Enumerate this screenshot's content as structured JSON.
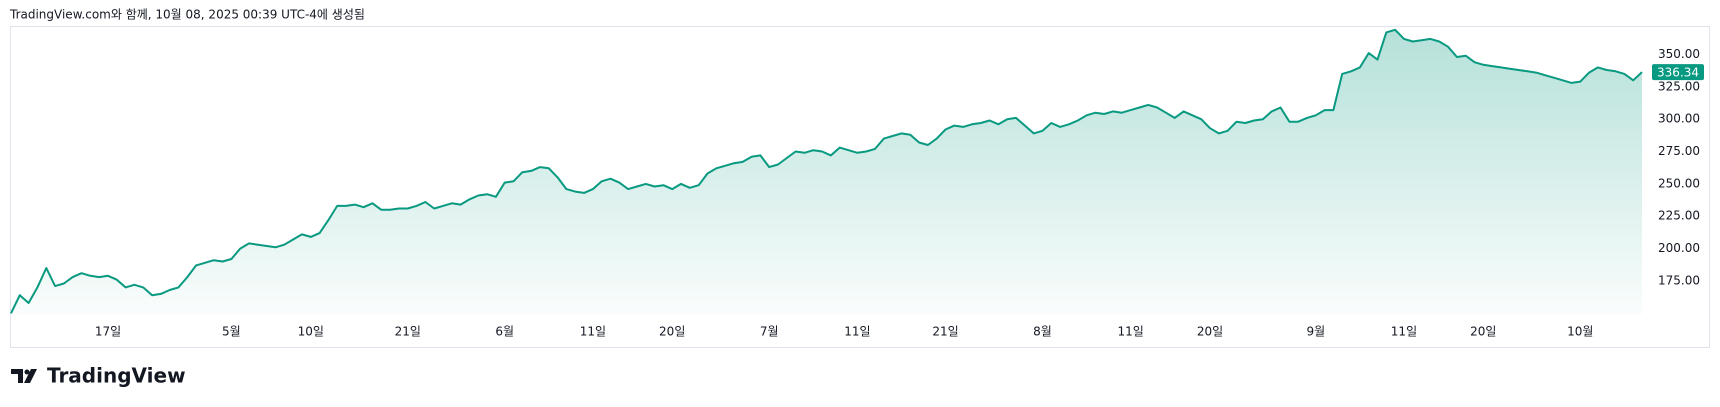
{
  "chart_data": {
    "type": "area",
    "title": "TradingView.com와 함께, 10월 08, 2025 00:39 UTC-4에 생성됨",
    "categories": [
      null,
      null,
      null,
      null,
      null,
      null,
      null,
      null,
      null,
      null,
      null,
      "17일",
      null,
      null,
      null,
      null,
      null,
      null,
      null,
      null,
      null,
      null,
      null,
      null,
      null,
      "5월",
      null,
      null,
      null,
      null,
      null,
      null,
      null,
      null,
      "10일",
      null,
      null,
      null,
      null,
      null,
      null,
      null,
      null,
      null,
      null,
      "21일",
      null,
      null,
      null,
      null,
      null,
      null,
      null,
      null,
      null,
      null,
      "6월",
      null,
      null,
      null,
      null,
      null,
      null,
      null,
      null,
      null,
      "11일",
      null,
      null,
      null,
      null,
      null,
      null,
      null,
      null,
      "20일",
      null,
      null,
      null,
      null,
      null,
      null,
      null,
      null,
      null,
      null,
      "7월",
      null,
      null,
      null,
      null,
      null,
      null,
      null,
      null,
      null,
      "11일",
      null,
      null,
      null,
      null,
      null,
      null,
      null,
      null,
      null,
      "21일",
      null,
      null,
      null,
      null,
      null,
      null,
      null,
      null,
      null,
      null,
      "8월",
      null,
      null,
      null,
      null,
      null,
      null,
      null,
      null,
      null,
      "11일",
      null,
      null,
      null,
      null,
      null,
      null,
      null,
      null,
      "20일",
      null,
      null,
      null,
      null,
      null,
      null,
      null,
      null,
      null,
      null,
      null,
      "9월",
      null,
      null,
      null,
      null,
      null,
      null,
      null,
      null,
      null,
      "11일",
      null,
      null,
      null,
      null,
      null,
      null,
      null,
      null,
      "20일",
      null,
      null,
      null,
      null,
      null,
      null,
      null,
      null,
      null,
      null,
      "10월",
      null,
      null,
      null,
      null,
      null,
      null,
      null
    ],
    "values": [
      150,
      164,
      158,
      170,
      185,
      171,
      173,
      178,
      181,
      179,
      178,
      179,
      176,
      170,
      172,
      170,
      164,
      165,
      168,
      170,
      178,
      187,
      189,
      191,
      190,
      192,
      200,
      204,
      203,
      202,
      201,
      203,
      207,
      211,
      209,
      212,
      222,
      233,
      233,
      234,
      232,
      235,
      230,
      230,
      231,
      231,
      233,
      236,
      231,
      233,
      235,
      234,
      238,
      241,
      242,
      240,
      251,
      252,
      259,
      260,
      263,
      262,
      255,
      246,
      244,
      243,
      246,
      252,
      254,
      251,
      246,
      248,
      250,
      248,
      249,
      246,
      250,
      247,
      249,
      258,
      262,
      264,
      266,
      267,
      271,
      272,
      263,
      265,
      270,
      275,
      274,
      276,
      275,
      272,
      278,
      276,
      274,
      275,
      277,
      285,
      287,
      289,
      288,
      282,
      280,
      285,
      292,
      295,
      294,
      296,
      297,
      299,
      296,
      300,
      301,
      295,
      289,
      291,
      297,
      294,
      296,
      299,
      303,
      305,
      304,
      306,
      305,
      307,
      309,
      311,
      309,
      305,
      301,
      306,
      303,
      300,
      293,
      289,
      291,
      298,
      297,
      299,
      300,
      306,
      309,
      298,
      298,
      301,
      303,
      307,
      307,
      335,
      337,
      340,
      351,
      346,
      367,
      369,
      362,
      360,
      361,
      362,
      360,
      356,
      348,
      349,
      344,
      342,
      341,
      340,
      339,
      338,
      337,
      336,
      334,
      332,
      330,
      328,
      329,
      336,
      340,
      338,
      337,
      335,
      330,
      336.34
    ],
    "color": "#089981",
    "ylim": [
      148.7,
      371.2
    ],
    "yticks": [
      {
        "value": 175,
        "label": "175.00"
      },
      {
        "value": 200,
        "label": "200.00"
      },
      {
        "value": 225,
        "label": "225.00"
      },
      {
        "value": 250,
        "label": "250.00"
      },
      {
        "value": 275,
        "label": "275.00"
      },
      {
        "value": 300,
        "label": "300.00"
      },
      {
        "value": 325,
        "label": "325.00"
      },
      {
        "value": 350,
        "label": "350.00"
      }
    ],
    "grid": false
  },
  "footer": {
    "logo_text": "TradingView"
  }
}
